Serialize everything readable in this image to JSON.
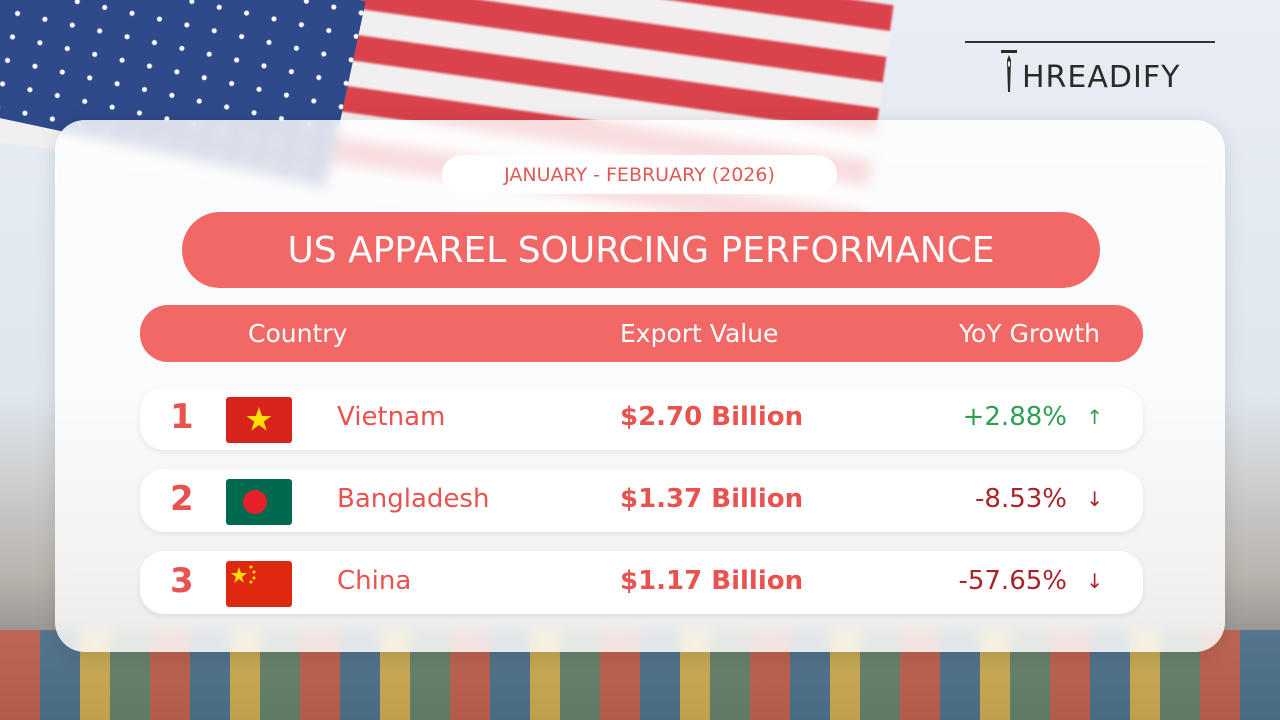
{
  "brand": "HREADIFY",
  "period": "JANUARY - FEBRUARY (2026)",
  "title": "US APPAREL SOURCING PERFORMANCE",
  "table": {
    "headers": [
      "Country",
      "Export Value",
      "YoY Growth"
    ],
    "rows": [
      {
        "rank": 1,
        "country": "Vietnam",
        "export_value": "$2.70 Billion",
        "yoy_growth": "+2.88%",
        "arrow": "↑",
        "color": "#2e9e52"
      },
      {
        "rank": 2,
        "country": "Bangladesh",
        "export_value": "$1.37 Billion",
        "yoy_growth": "-8.53%",
        "arrow": "↓",
        "color": "#a8232a"
      },
      {
        "rank": 3,
        "country": "China",
        "export_value": "$1.17 Billion",
        "yoy_growth": "-57.65%",
        "arrow": "↓",
        "color": "#a8232a"
      }
    ]
  }
}
